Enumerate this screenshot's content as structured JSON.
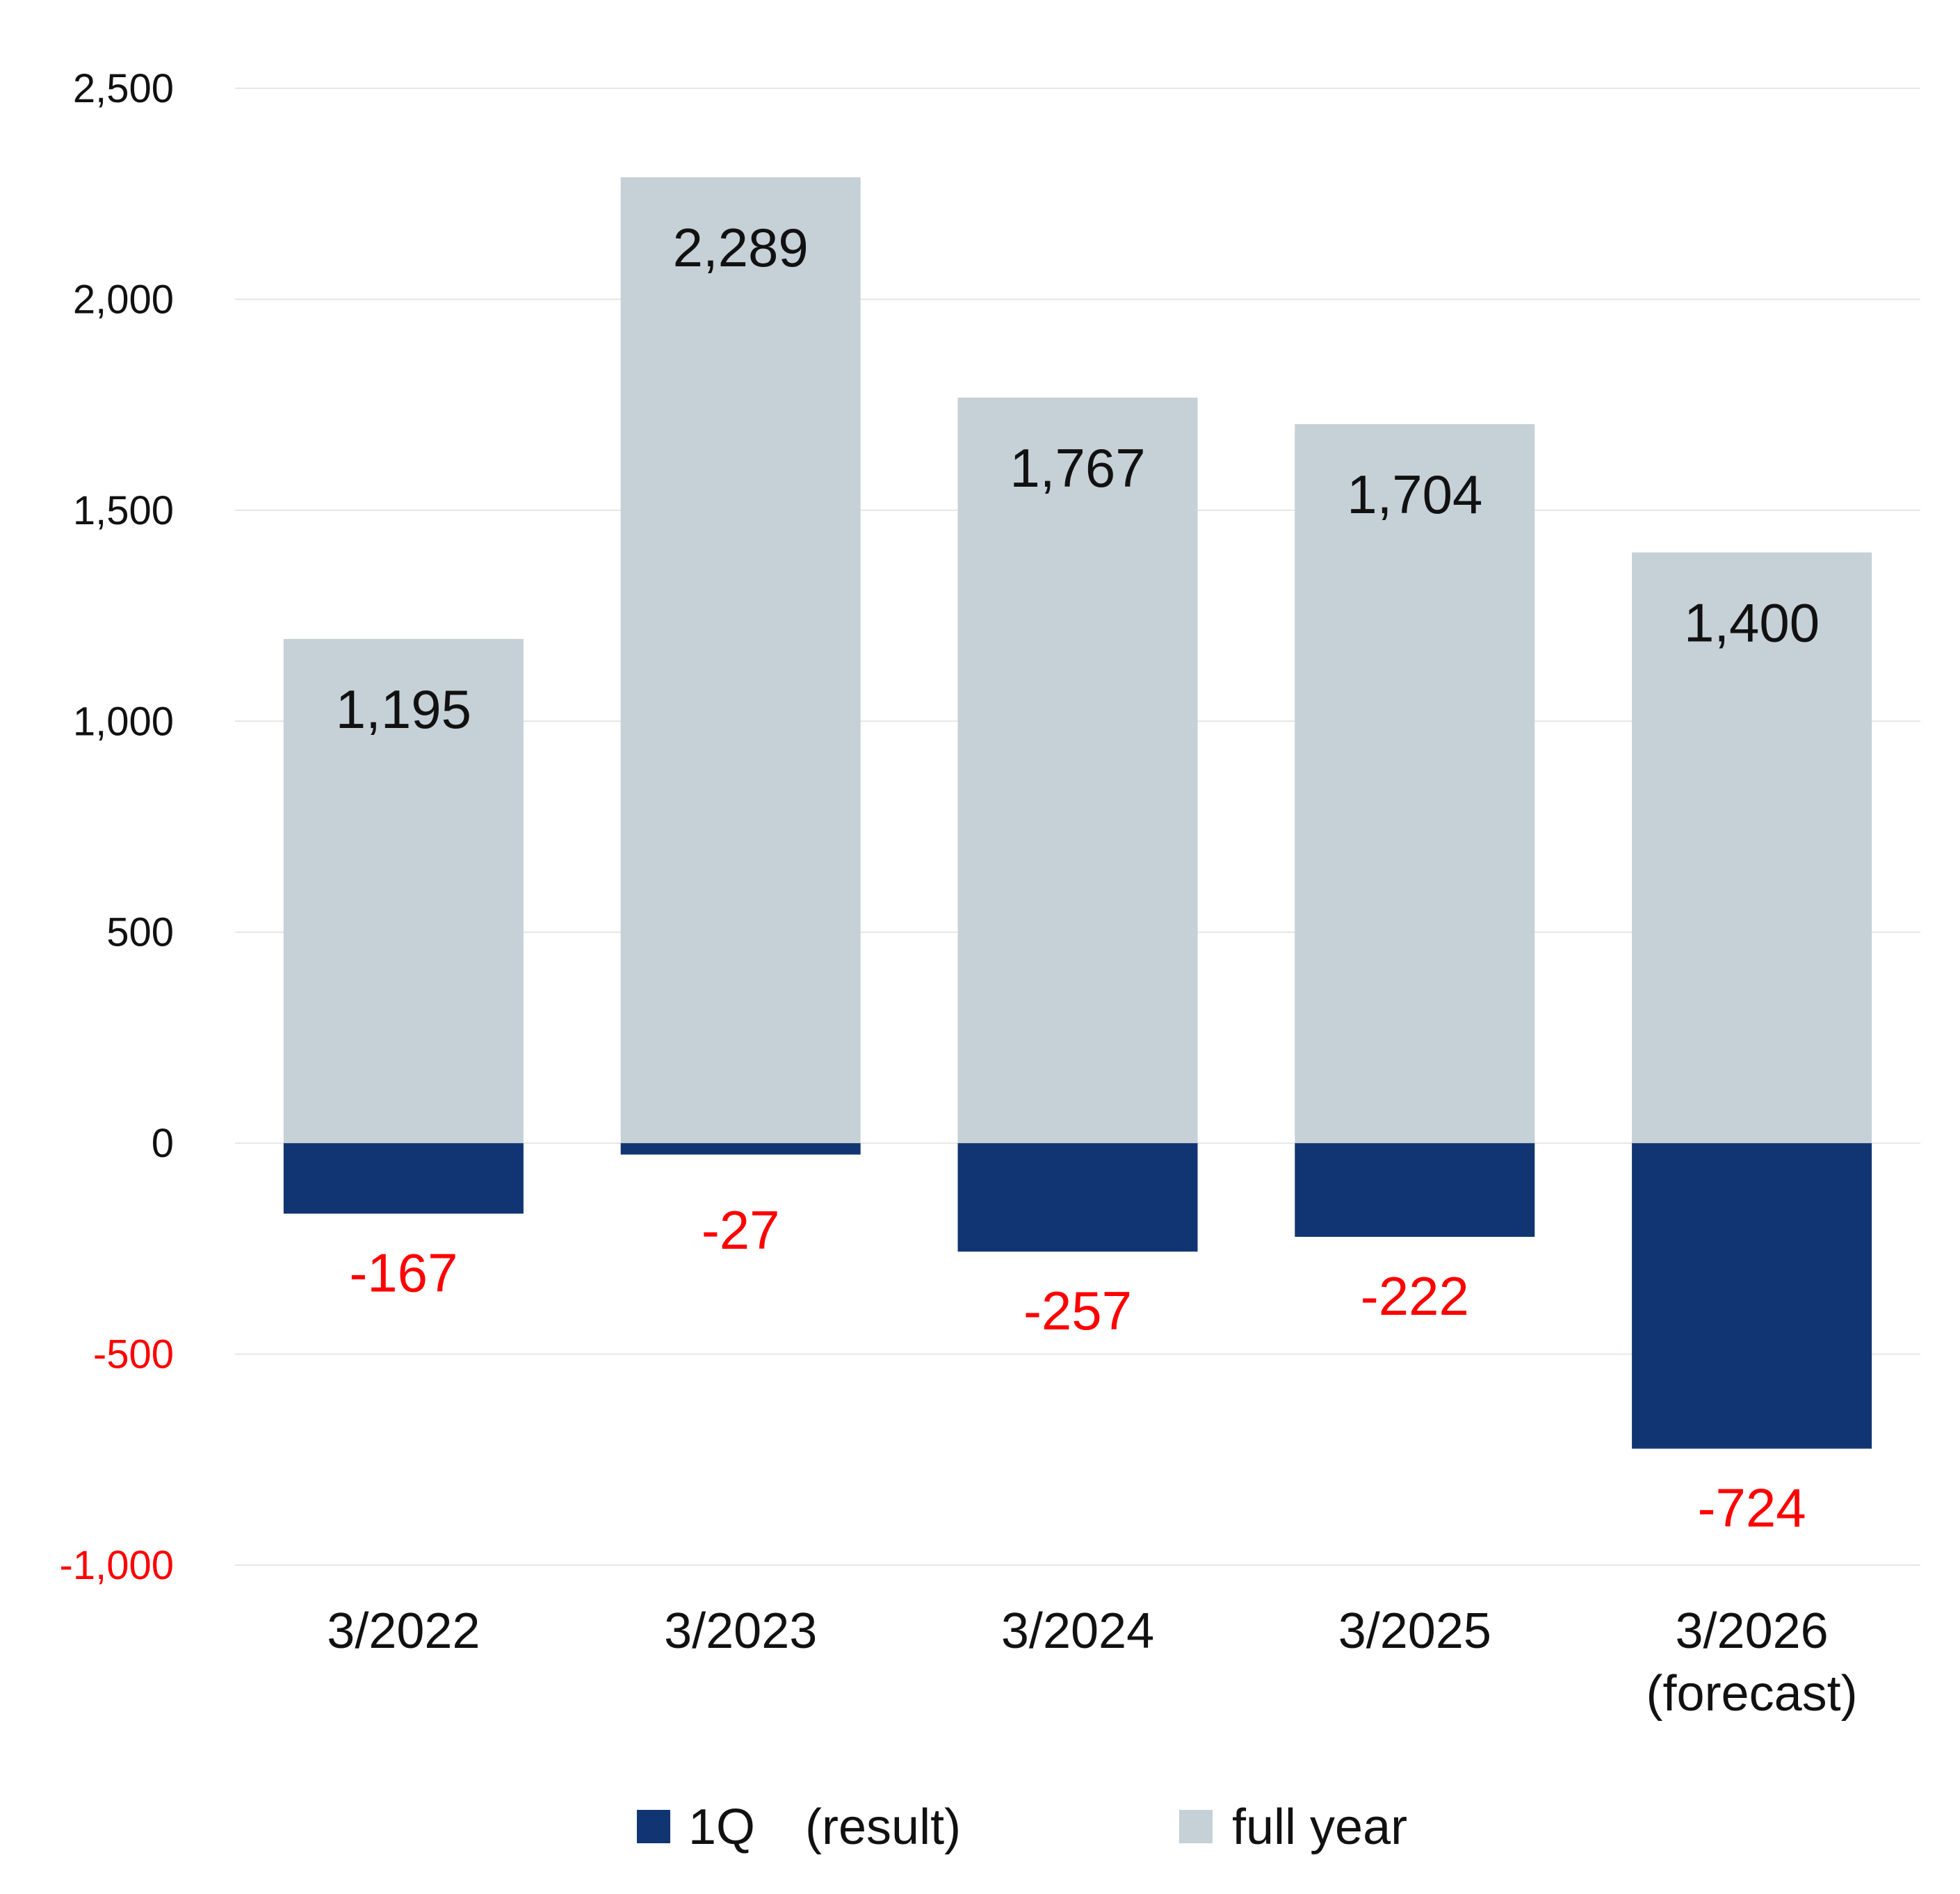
{
  "chart_data": {
    "type": "bar",
    "categories": [
      [
        "3/2022"
      ],
      [
        "3/2023"
      ],
      [
        "3/2024"
      ],
      [
        "3/2025"
      ],
      [
        "3/2026",
        "(forecast)"
      ]
    ],
    "series": [
      {
        "name": "full year",
        "values": [
          1195,
          2289,
          1767,
          1704,
          1400
        ],
        "labels": [
          "1,195",
          "2,289",
          "1,767",
          "1,704",
          "1,400"
        ],
        "color": "#c5d0d7",
        "label_color": "#111111"
      },
      {
        "name": "1Q　(result)",
        "values": [
          -167,
          -27,
          -257,
          -222,
          -724
        ],
        "labels": [
          "-167",
          "-27",
          "-257",
          "-222",
          "-724"
        ],
        "color": "#103572",
        "label_color": "#ff0000"
      }
    ],
    "ylim": [
      -1000,
      2500
    ],
    "yticks": [
      {
        "value": 2500,
        "label": "2,500"
      },
      {
        "value": 2000,
        "label": "2,000"
      },
      {
        "value": 1500,
        "label": "1,500"
      },
      {
        "value": 1000,
        "label": "1,000"
      },
      {
        "value": 500,
        "label": "500"
      },
      {
        "value": 0,
        "label": "0"
      },
      {
        "value": -500,
        "label": "-500"
      },
      {
        "value": -1000,
        "label": "-1,000"
      }
    ],
    "ytick_color_positive": "#111111",
    "ytick_color_negative": "#ff0000",
    "grid": true,
    "grid_color": "#e6e6e6",
    "legend_position": "bottom-center",
    "legend": [
      {
        "label": "1Q　(result)",
        "color": "#103572"
      },
      {
        "label": "full year",
        "color": "#c5d0d7"
      }
    ],
    "title": "",
    "xlabel": "",
    "ylabel": ""
  }
}
